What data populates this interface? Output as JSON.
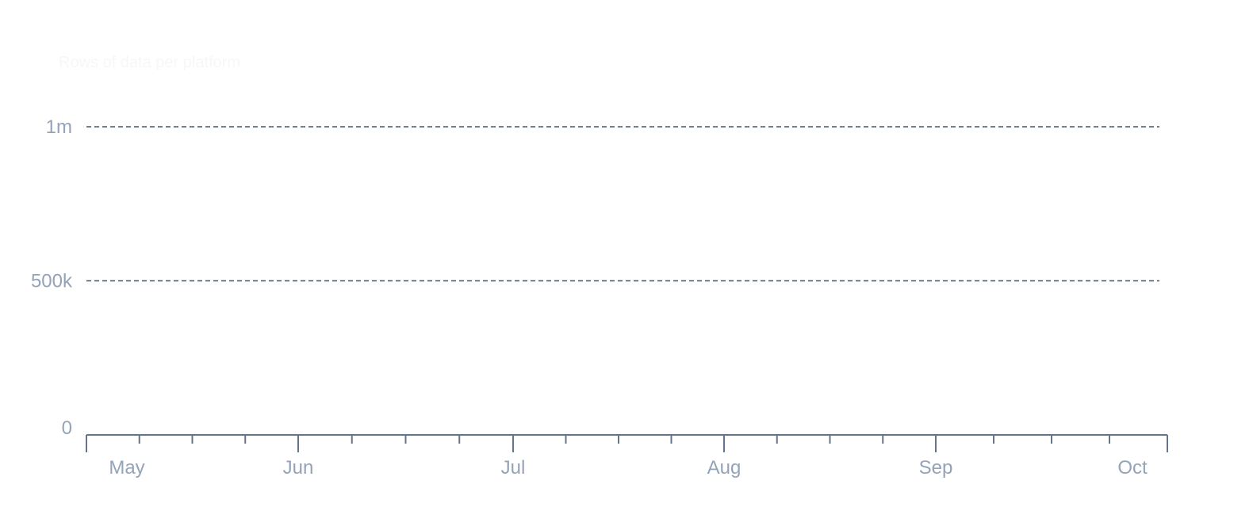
{
  "chart_data": {
    "type": "line",
    "title": "Rows of data per platform",
    "xlabel": "",
    "ylabel": "",
    "x_ticks": [
      "May",
      "Jun",
      "Jul",
      "Aug",
      "Sep",
      "Oct"
    ],
    "y_ticks": [
      {
        "value": 0,
        "label": "0"
      },
      {
        "value": 500000,
        "label": "500k"
      },
      {
        "value": 1000000,
        "label": "1m"
      }
    ],
    "ylim": [
      0,
      1000000
    ],
    "xlim": [
      "May",
      "Oct"
    ],
    "grid": "horizontal dashed",
    "series": [],
    "colors": {
      "grid": "#475569",
      "axis": "#64748b",
      "tick_label": "#94a3b8"
    }
  }
}
